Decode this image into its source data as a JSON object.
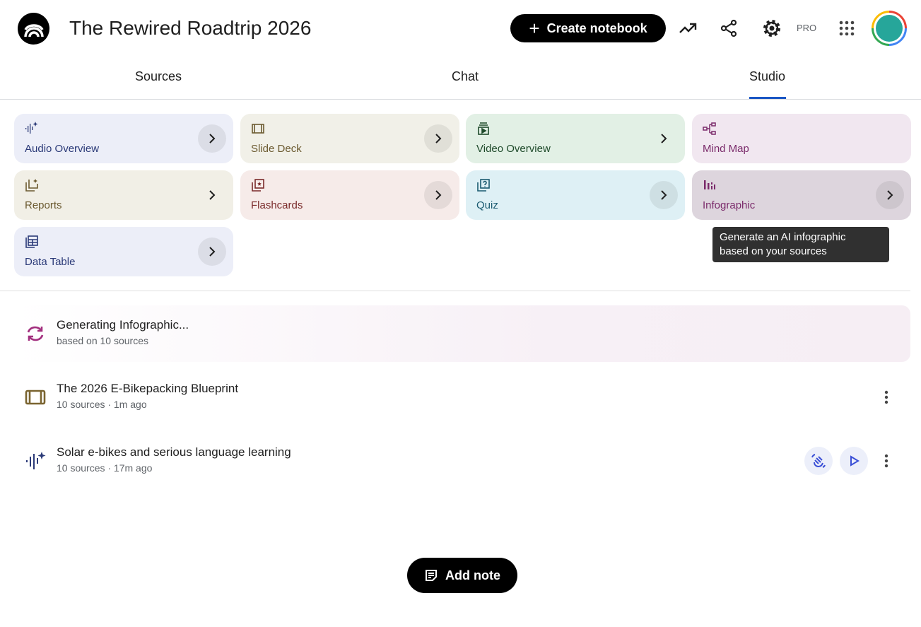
{
  "header": {
    "title": "The Rewired Roadtrip 2026",
    "create_label": "Create notebook",
    "pro_label": "PRO",
    "icons": [
      "notebooklm-logo",
      "analytics-icon",
      "share-icon",
      "settings-icon",
      "apps-grid-icon",
      "avatar"
    ]
  },
  "tabs": [
    {
      "label": "Sources"
    },
    {
      "label": "Chat"
    },
    {
      "label": "Studio",
      "active": true
    }
  ],
  "studio_cards": [
    {
      "label": "Audio Overview",
      "icon": "audio-sparkle-icon",
      "bg": "#eceef8",
      "color": "#2b3a78"
    },
    {
      "label": "Slide Deck",
      "icon": "slides-icon",
      "bg": "#f1f0e8",
      "color": "#6b5a30"
    },
    {
      "label": "Video Overview",
      "icon": "video-icon",
      "bg": "#e2f0e5",
      "color": "#1e4a2a"
    },
    {
      "label": "Mind Map",
      "icon": "mind-map-icon",
      "bg": "#f1e7f0",
      "color": "#7a2a6a"
    },
    {
      "label": "Reports",
      "icon": "reports-icon",
      "bg": "#f1efe6",
      "color": "#6b5a30"
    },
    {
      "label": "Flashcards",
      "icon": "flashcards-icon",
      "bg": "#f6ebe9",
      "color": "#7a2a2a"
    },
    {
      "label": "Quiz",
      "icon": "quiz-icon",
      "bg": "#def0f5",
      "color": "#1a5a70"
    },
    {
      "label": "Infographic",
      "icon": "infographic-icon",
      "bg": "#ddd5dd",
      "color": "#7a2a6a"
    },
    {
      "label": "Data Table",
      "icon": "table-icon",
      "bg": "#eceef8",
      "color": "#2b3a78"
    }
  ],
  "tooltip": {
    "line1": "Generate an AI infographic",
    "line2": "based on your sources"
  },
  "outputs": [
    {
      "title": "Generating Infographic...",
      "subtitle": "based on 10 sources",
      "icon": "sync-icon"
    },
    {
      "title": "The 2026 E-Bikepacking Blueprint",
      "subtitle": "10 sources · 1m ago",
      "icon": "slides-icon"
    },
    {
      "title": "Solar e-bikes and serious language learning",
      "subtitle": "10 sources · 17m ago",
      "icon": "audio-sparkle-icon"
    }
  ],
  "add_note_label": "Add note"
}
